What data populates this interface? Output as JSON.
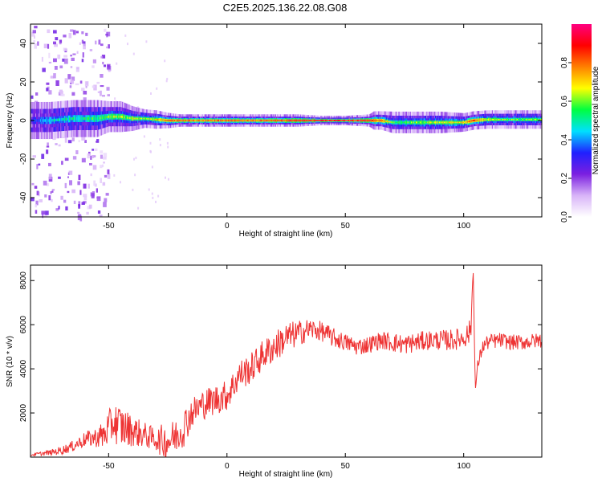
{
  "title": "C2E5.2025.136.22.08.G08",
  "chart_data": [
    {
      "type": "heatmap",
      "xlabel": "Height of straight line (km)",
      "ylabel": "Frequency (Hz)",
      "xlim": [
        -83,
        133
      ],
      "ylim": [
        -50,
        50
      ],
      "xticks": [
        -50,
        0,
        50,
        100
      ],
      "yticks": [
        -40,
        -20,
        0,
        20,
        40
      ],
      "colorbar": {
        "label": "Normalized spectral amplitude",
        "range": [
          0,
          1
        ],
        "ticks": [
          "0.0",
          "0.2",
          "0.4",
          "0.6",
          "0.8"
        ],
        "colors": [
          "#ffffff",
          "#d8b4f8",
          "#7b1fe0",
          "#2020ff",
          "#00e0ff",
          "#00ff40",
          "#ffff00",
          "#ff8000",
          "#ff0000",
          "#ff0080"
        ]
      },
      "profile": {
        "x": [
          -83,
          -75,
          -65,
          -55,
          -50,
          -45,
          -40,
          -35,
          -30,
          -25,
          -20,
          -10,
          0,
          10,
          20,
          30,
          40,
          50,
          60,
          62,
          65,
          70,
          80,
          90,
          100,
          104,
          110,
          120,
          133
        ],
        "center_freq": [
          0,
          0,
          1,
          1,
          2,
          2,
          1,
          1,
          0.5,
          0,
          0,
          0,
          0,
          0,
          0,
          0,
          0,
          0,
          0,
          0,
          0,
          -1,
          -1,
          -1,
          -1,
          0,
          0.5,
          0.5,
          0.5
        ],
        "peak_amplitude": [
          0.3,
          0.45,
          0.5,
          0.55,
          0.6,
          0.6,
          0.65,
          0.6,
          0.7,
          0.8,
          0.85,
          0.8,
          0.85,
          0.8,
          0.85,
          0.9,
          0.95,
          0.95,
          0.9,
          0.85,
          0.8,
          0.55,
          0.6,
          0.65,
          0.7,
          0.85,
          0.65,
          0.6,
          0.6
        ],
        "half_width_hz": [
          6,
          6,
          6,
          6,
          5,
          5,
          4,
          3,
          3,
          2.5,
          2,
          2,
          2,
          2,
          2,
          2,
          1.5,
          1.5,
          2,
          3,
          3,
          3.5,
          3.5,
          3.5,
          3,
          3,
          3,
          3,
          3
        ]
      },
      "scatter_extent_x": [
        -83,
        -50
      ]
    },
    {
      "type": "line",
      "xlabel": "Height of straight line (km)",
      "ylabel": "SNR (10 * v/v)",
      "xlim": [
        -83,
        133
      ],
      "ylim": [
        0,
        8700
      ],
      "xticks": [
        -50,
        0,
        50,
        100
      ],
      "yticks": [
        2000,
        4000,
        6000,
        8000
      ],
      "series": [
        {
          "color": "#ee3333",
          "x": [
            -83,
            -75,
            -70,
            -65,
            -60,
            -55,
            -52,
            -48,
            -45,
            -40,
            -35,
            -30,
            -26,
            -22,
            -18,
            -15,
            -10,
            -5,
            0,
            3,
            5,
            10,
            15,
            20,
            25,
            30,
            35,
            40,
            45,
            50,
            55,
            60,
            65,
            70,
            75,
            80,
            85,
            90,
            95,
            100,
            103,
            104,
            104.7,
            105,
            106,
            108,
            110,
            115,
            120,
            125,
            133
          ],
          "y": [
            100,
            200,
            300,
            500,
            800,
            900,
            1000,
            1600,
            1400,
            1200,
            1000,
            800,
            700,
            900,
            1400,
            2000,
            2400,
            2600,
            2800,
            3300,
            3700,
            4000,
            4600,
            5000,
            5400,
            5600,
            5800,
            5700,
            5400,
            5200,
            5000,
            5100,
            5300,
            5200,
            5100,
            5200,
            5300,
            5300,
            5300,
            5400,
            5700,
            8600,
            4200,
            3100,
            4200,
            5000,
            5200,
            5300,
            5200,
            5200,
            5300
          ],
          "noise_amplitude": [
            60,
            120,
            200,
            250,
            350,
            450,
            700,
            900,
            1000,
            700,
            600,
            500,
            900,
            800,
            900,
            700,
            700,
            700,
            700,
            700,
            700,
            700,
            700,
            700,
            700,
            600,
            500,
            450,
            450,
            400,
            400,
            400,
            400,
            450,
            450,
            450,
            450,
            450,
            500,
            450,
            600,
            0,
            0,
            0,
            300,
            300,
            350,
            350,
            350,
            350,
            350
          ]
        }
      ]
    }
  ]
}
